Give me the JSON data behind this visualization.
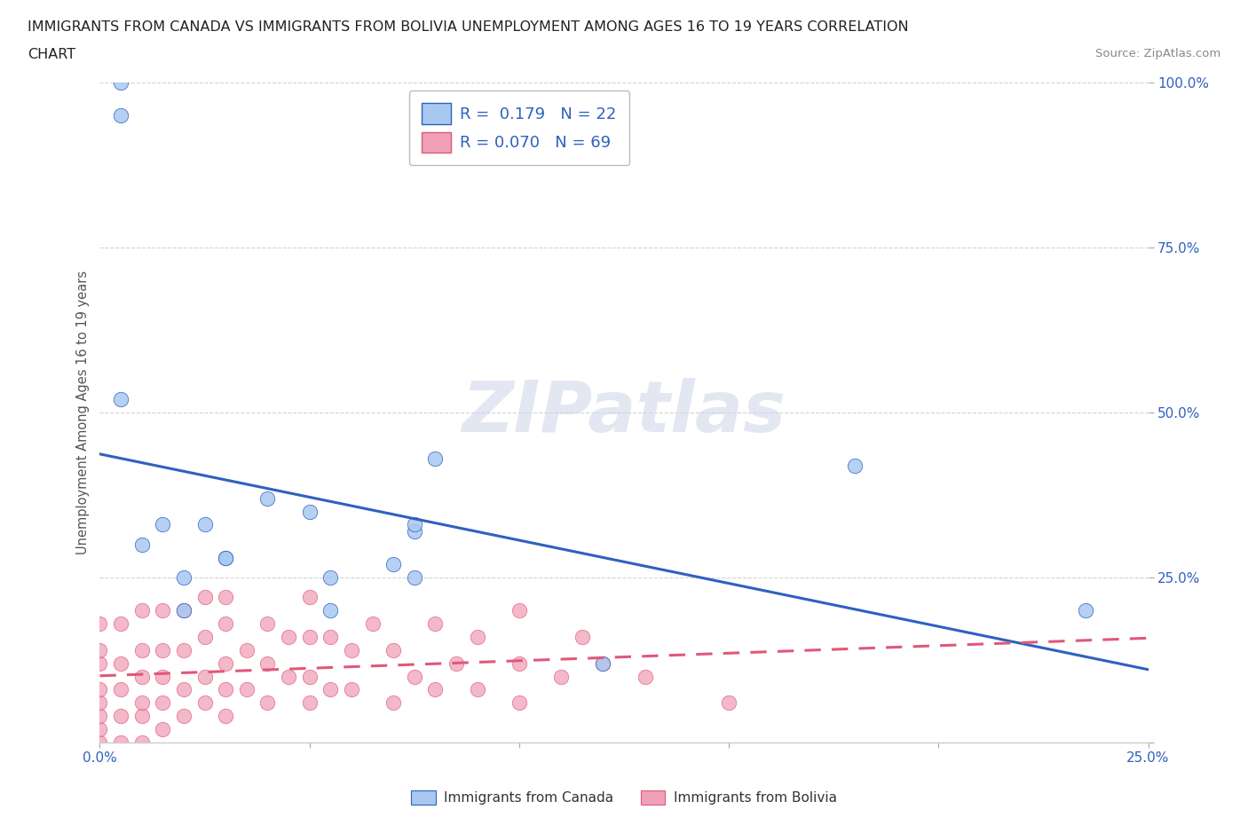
{
  "title_line1": "IMMIGRANTS FROM CANADA VS IMMIGRANTS FROM BOLIVIA UNEMPLOYMENT AMONG AGES 16 TO 19 YEARS CORRELATION",
  "title_line2": "CHART",
  "source": "Source: ZipAtlas.com",
  "ylabel": "Unemployment Among Ages 16 to 19 years",
  "xlim": [
    0.0,
    0.25
  ],
  "ylim": [
    0.0,
    1.0
  ],
  "canada_color": "#a8c8f0",
  "bolivia_color": "#f0a0b8",
  "canada_line_color": "#3060c0",
  "bolivia_line_color": "#e05878",
  "R_canada": 0.179,
  "N_canada": 22,
  "R_bolivia": 0.07,
  "N_bolivia": 69,
  "legend_label_canada": "Immigrants from Canada",
  "legend_label_bolivia": "Immigrants from Bolivia",
  "canada_x": [
    0.005,
    0.005,
    0.005,
    0.01,
    0.015,
    0.02,
    0.02,
    0.025,
    0.03,
    0.03,
    0.04,
    0.05,
    0.055,
    0.055,
    0.07,
    0.075,
    0.075,
    0.075,
    0.08,
    0.12,
    0.18,
    0.235
  ],
  "canada_y": [
    0.95,
    1.0,
    0.52,
    0.3,
    0.33,
    0.25,
    0.2,
    0.33,
    0.28,
    0.28,
    0.37,
    0.35,
    0.25,
    0.2,
    0.27,
    0.32,
    0.33,
    0.25,
    0.43,
    0.12,
    0.42,
    0.2
  ],
  "bolivia_x": [
    0.0,
    0.0,
    0.0,
    0.0,
    0.0,
    0.0,
    0.0,
    0.0,
    0.005,
    0.005,
    0.005,
    0.005,
    0.005,
    0.01,
    0.01,
    0.01,
    0.01,
    0.01,
    0.01,
    0.015,
    0.015,
    0.015,
    0.015,
    0.015,
    0.02,
    0.02,
    0.02,
    0.02,
    0.025,
    0.025,
    0.025,
    0.025,
    0.03,
    0.03,
    0.03,
    0.03,
    0.03,
    0.035,
    0.035,
    0.04,
    0.04,
    0.04,
    0.045,
    0.045,
    0.05,
    0.05,
    0.05,
    0.05,
    0.055,
    0.055,
    0.06,
    0.06,
    0.065,
    0.07,
    0.07,
    0.075,
    0.08,
    0.08,
    0.085,
    0.09,
    0.09,
    0.1,
    0.1,
    0.1,
    0.11,
    0.115,
    0.12,
    0.13,
    0.15
  ],
  "bolivia_y": [
    0.0,
    0.02,
    0.04,
    0.06,
    0.08,
    0.12,
    0.14,
    0.18,
    0.0,
    0.04,
    0.08,
    0.12,
    0.18,
    0.0,
    0.04,
    0.06,
    0.1,
    0.14,
    0.2,
    0.02,
    0.06,
    0.1,
    0.14,
    0.2,
    0.04,
    0.08,
    0.14,
    0.2,
    0.06,
    0.1,
    0.16,
    0.22,
    0.04,
    0.08,
    0.12,
    0.18,
    0.22,
    0.08,
    0.14,
    0.06,
    0.12,
    0.18,
    0.1,
    0.16,
    0.06,
    0.1,
    0.16,
    0.22,
    0.08,
    0.16,
    0.08,
    0.14,
    0.18,
    0.06,
    0.14,
    0.1,
    0.08,
    0.18,
    0.12,
    0.08,
    0.16,
    0.06,
    0.12,
    0.2,
    0.1,
    0.16,
    0.12,
    0.1,
    0.06
  ],
  "background_color": "#ffffff",
  "grid_color": "#c8c8c8"
}
